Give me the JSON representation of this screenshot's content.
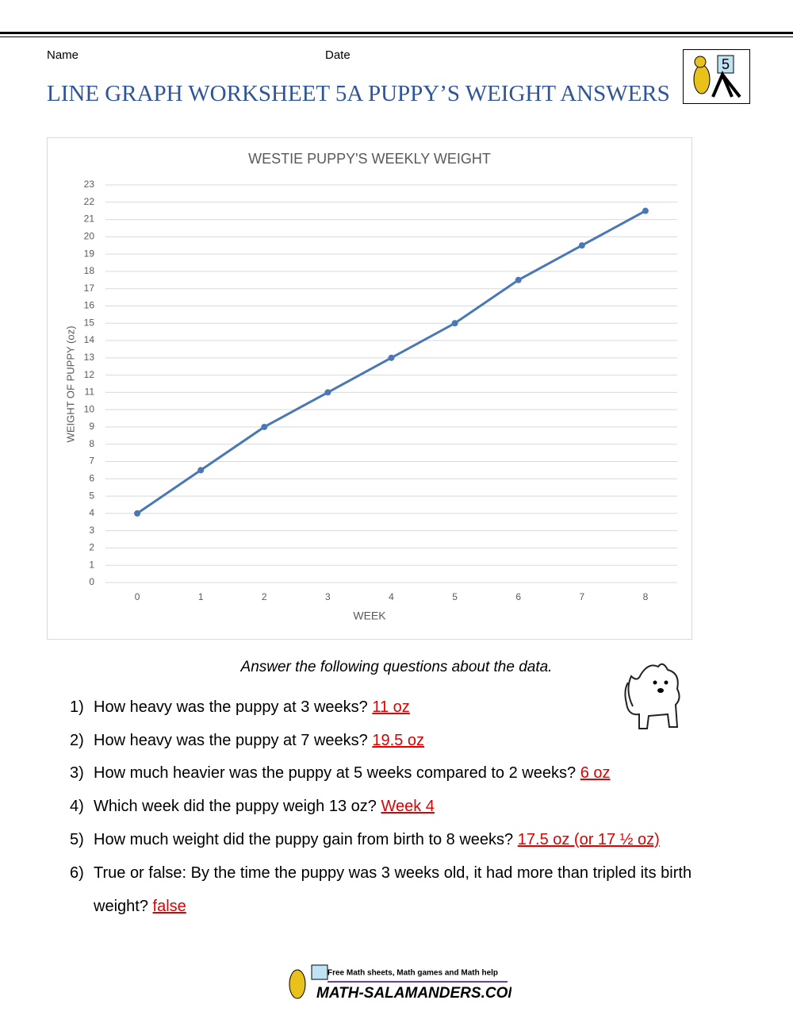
{
  "header": {
    "name_label": "Name",
    "date_label": "Date",
    "title": "LINE GRAPH WORKSHEET 5A PUPPY’S WEIGHT ANSWERS",
    "logo_number": "5"
  },
  "chart_data": {
    "type": "line",
    "title": "WESTIE PUPPY'S WEEKLY WEIGHT",
    "x_label": "WEEK",
    "y_label": "WEIGHT OF PUPPY (oz)",
    "x": [
      0,
      1,
      2,
      3,
      4,
      5,
      6,
      7,
      8
    ],
    "values": [
      4,
      6.5,
      9,
      11,
      13,
      15,
      17.5,
      19.5,
      21.5
    ],
    "color": "#4a78b5",
    "xlim": [
      -0.5,
      8.5
    ],
    "xticks": [
      0,
      1,
      2,
      3,
      4,
      5,
      6,
      7,
      8
    ],
    "ylim": [
      0,
      23
    ],
    "yticks": [
      0,
      1,
      2,
      3,
      4,
      5,
      6,
      7,
      8,
      9,
      10,
      11,
      12,
      13,
      14,
      15,
      16,
      17,
      18,
      19,
      20,
      21,
      22,
      23
    ],
    "grid": true
  },
  "intro": "Answer the following questions about the data.",
  "questions": [
    {
      "number": "1)",
      "text": "How heavy was the puppy at 3 weeks?",
      "answer": "11 oz"
    },
    {
      "number": "2)",
      "text": "How heavy was the puppy at 7 weeks?",
      "answer": "19.5 oz"
    },
    {
      "number": "3)",
      "text": "How much heavier was the puppy at 5 weeks compared to 2 weeks?",
      "answer": "6 oz"
    },
    {
      "number": "4)",
      "text": "Which week did the puppy weigh 13 oz?",
      "answer": "Week 4"
    },
    {
      "number": "5)",
      "text": "How much weight did the puppy gain from birth to 8 weeks?",
      "answer": "17.5 oz (or 17 ½ oz)"
    },
    {
      "number": "6)",
      "text": "True or false: By the time the puppy was 3 weeks old, it had more than tripled its birth weight?",
      "answer": "false"
    }
  ],
  "footer": {
    "tagline": "Free Math sheets, Math games and Math help",
    "site": "MATH-SALAMANDERS.COM"
  }
}
